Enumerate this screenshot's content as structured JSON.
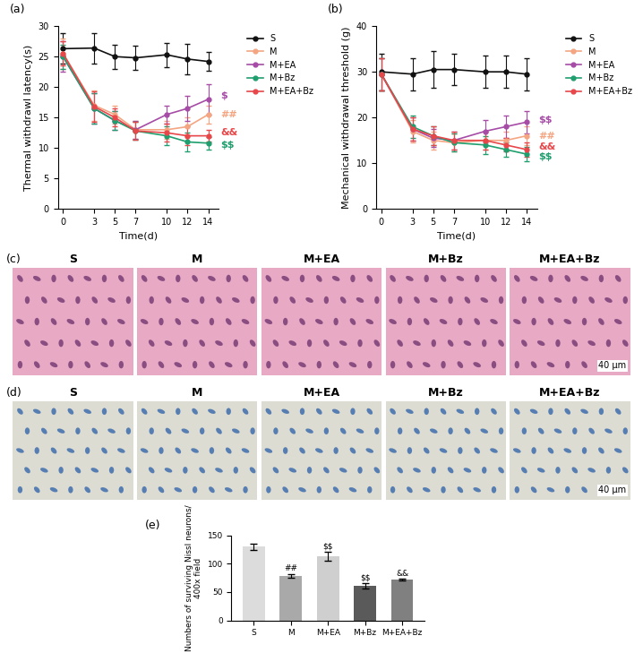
{
  "chart_data": [
    {
      "type": "line",
      "panel_label": "(a)",
      "x_label": "Time(d)",
      "y_label": "Thermal withdrawl latency(s)",
      "x": [
        0,
        3,
        5,
        7,
        10,
        12,
        14
      ],
      "xlim": [
        -0.5,
        15
      ],
      "xticks": [
        0,
        3,
        5,
        7,
        10,
        12,
        14
      ],
      "ylim": [
        0,
        30
      ],
      "yticks": [
        0,
        5,
        10,
        15,
        20,
        25,
        30
      ],
      "legend": "upper left",
      "marker": "o",
      "series": [
        {
          "name": "S",
          "color": "#111111",
          "values": [
            26.3,
            26.4,
            25.0,
            24.8,
            25.3,
            24.6,
            24.2
          ],
          "errors": [
            2.5,
            2.5,
            2.0,
            2.0,
            2.0,
            2.5,
            1.5
          ]
        },
        {
          "name": "M",
          "color": "#f4a582",
          "values": [
            25.5,
            17.0,
            15.5,
            13.0,
            13.0,
            13.5,
            15.5
          ],
          "errors": [
            2.5,
            2.5,
            1.5,
            1.5,
            1.5,
            1.5,
            1.5
          ]
        },
        {
          "name": "M+EA",
          "color": "#a64ca6",
          "values": [
            25.0,
            16.5,
            14.5,
            13.0,
            15.5,
            16.5,
            18.0
          ],
          "errors": [
            2.5,
            2.5,
            1.5,
            1.5,
            1.5,
            2.0,
            2.5
          ]
        },
        {
          "name": "M+Bz",
          "color": "#1f9e6e",
          "values": [
            25.0,
            16.5,
            14.5,
            12.8,
            12.0,
            11.0,
            10.8
          ],
          "errors": [
            2.0,
            2.5,
            1.5,
            1.5,
            1.5,
            1.5,
            1.0
          ]
        },
        {
          "name": "M+EA+Bz",
          "color": "#e8474a",
          "values": [
            25.5,
            16.8,
            15.0,
            12.8,
            12.5,
            12.0,
            12.0
          ],
          "errors": [
            2.0,
            2.5,
            1.5,
            1.5,
            1.5,
            1.5,
            1.0
          ]
        }
      ],
      "annotations": [
        {
          "text": "$",
          "y": 18.5,
          "color": "#a64ca6"
        },
        {
          "text": "##",
          "y": 15.5,
          "color": "#f4a582"
        },
        {
          "text": "&&",
          "y": 12.5,
          "color": "#e8474a"
        },
        {
          "text": "$$",
          "y": 10.5,
          "color": "#1f9e6e"
        }
      ]
    },
    {
      "type": "line",
      "panel_label": "(b)",
      "x_label": "Time(d)",
      "y_label": "Mechanical withdrawal threshold (g)",
      "x": [
        0,
        3,
        5,
        7,
        10,
        12,
        14
      ],
      "xlim": [
        -0.5,
        15
      ],
      "xticks": [
        0,
        3,
        5,
        7,
        10,
        12,
        14
      ],
      "ylim": [
        0,
        40
      ],
      "yticks": [
        0,
        10,
        20,
        30,
        40
      ],
      "legend": "upper left",
      "marker": "o",
      "series": [
        {
          "name": "S",
          "color": "#111111",
          "values": [
            30.0,
            29.5,
            30.5,
            30.5,
            30.0,
            30.0,
            29.5
          ],
          "errors": [
            4.0,
            3.5,
            4.0,
            3.5,
            3.5,
            3.5,
            3.5
          ]
        },
        {
          "name": "M",
          "color": "#f4a582",
          "values": [
            29.5,
            17.0,
            15.0,
            14.5,
            15.0,
            15.0,
            16.0
          ],
          "errors": [
            3.5,
            2.5,
            2.0,
            2.0,
            2.0,
            2.0,
            2.0
          ]
        },
        {
          "name": "M+EA",
          "color": "#a64ca6",
          "values": [
            29.5,
            17.5,
            15.5,
            15.0,
            17.0,
            18.0,
            19.0
          ],
          "errors": [
            3.5,
            2.5,
            2.0,
            2.0,
            2.5,
            2.5,
            2.5
          ]
        },
        {
          "name": "M+Bz",
          "color": "#1f9e6e",
          "values": [
            29.5,
            18.0,
            16.0,
            14.5,
            14.0,
            13.0,
            12.0
          ],
          "errors": [
            3.5,
            2.5,
            2.0,
            2.0,
            2.0,
            1.5,
            1.5
          ]
        },
        {
          "name": "M+EA+Bz",
          "color": "#e8474a",
          "values": [
            29.5,
            17.5,
            16.0,
            15.0,
            15.0,
            14.0,
            13.0
          ],
          "errors": [
            3.5,
            2.5,
            2.0,
            2.0,
            2.0,
            1.5,
            1.5
          ]
        }
      ],
      "annotations": [
        {
          "text": "$$",
          "y": 19.5,
          "color": "#a64ca6"
        },
        {
          "text": "##",
          "y": 16.0,
          "color": "#f4a582"
        },
        {
          "text": "&&",
          "y": 13.5,
          "color": "#e8474a"
        },
        {
          "text": "$$",
          "y": 11.5,
          "color": "#1f9e6e"
        }
      ]
    },
    {
      "type": "bar",
      "panel_label": "(e)",
      "y_label": "Numbers of surviving Nissl neurons/ 400x field",
      "categories": [
        "S",
        "M",
        "M+EA",
        "M+Bz",
        "M+EA+Bz"
      ],
      "values": [
        130,
        79,
        113,
        61,
        72
      ],
      "errors": [
        5,
        3,
        8,
        5,
        2
      ],
      "colors": [
        "#dcdcdc",
        "#a9a9a9",
        "#cfcfcf",
        "#5a5a5a",
        "#808080"
      ],
      "ylim": [
        0,
        150
      ],
      "yticks": [
        0,
        50,
        100,
        150
      ],
      "annotations": [
        {
          "category": "M",
          "text": "##"
        },
        {
          "category": "M+EA",
          "text": "$$"
        },
        {
          "category": "M+Bz",
          "text": "$$"
        },
        {
          "category": "M+EA+Bz",
          "text": "&&"
        }
      ]
    }
  ],
  "images": [
    {
      "type": "image",
      "panel_label": "(c)",
      "labels": [
        "S",
        "M",
        "M+EA",
        "M+Bz",
        "M+EA+Bz"
      ],
      "scale_bar": "40 μm",
      "color": "#e7a9c4"
    },
    {
      "type": "image",
      "panel_label": "(d)",
      "labels": [
        "S",
        "M",
        "M+EA",
        "M+Bz",
        "M+EA+Bz"
      ],
      "scale_bar": "40 μm",
      "color": "#dcdcd2"
    }
  ]
}
